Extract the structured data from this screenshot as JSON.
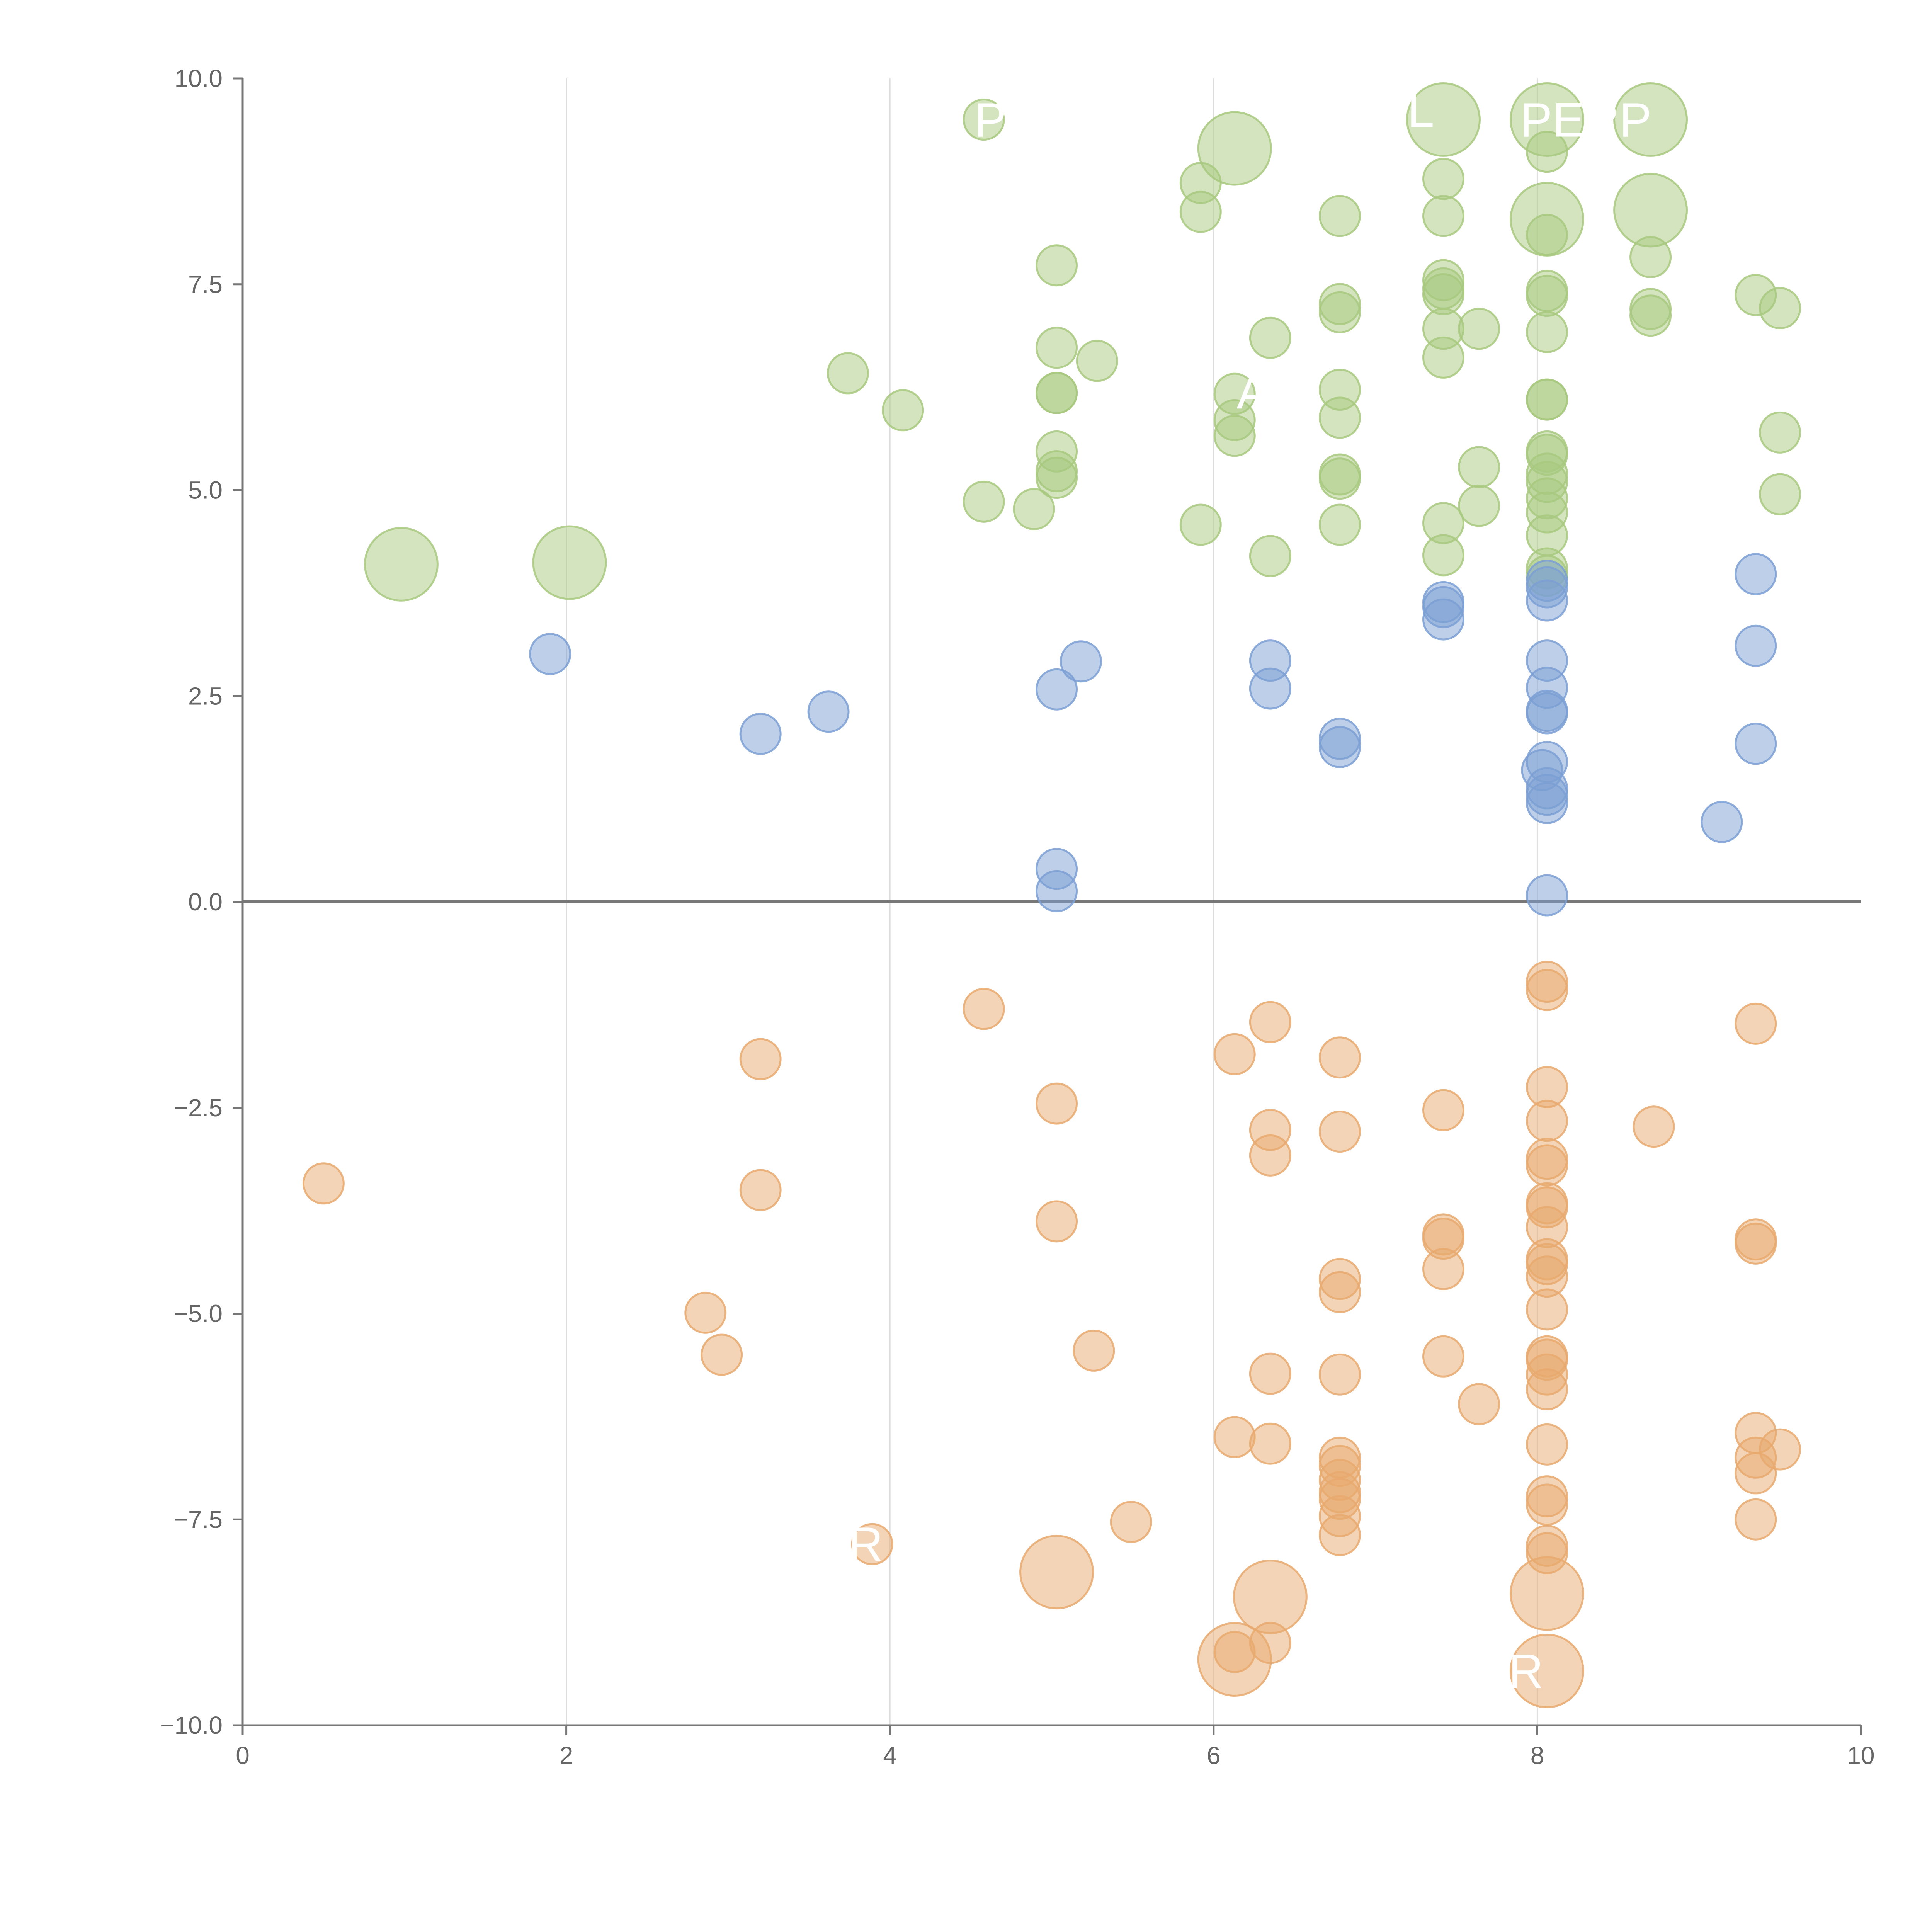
{
  "chart_data": {
    "type": "scatter",
    "title": "",
    "xlabel": "",
    "ylabel": "",
    "xlim": [
      0,
      10
    ],
    "ylim": [
      -10,
      10
    ],
    "grid": {
      "x": true,
      "y": false
    },
    "reference_line_y": 0,
    "x_ticks": [
      0,
      2,
      4,
      6,
      8,
      10
    ],
    "x_tick_labels": [
      "0",
      "2",
      "4",
      "6",
      "8",
      "10"
    ],
    "y_ticks": [
      -10,
      -7.5,
      -5,
      -2.5,
      0,
      2.5,
      5,
      7.5,
      10
    ],
    "y_tick_labels": [
      "−10.0",
      "−7.5",
      "−5.0",
      "−2.5",
      "0.0",
      "2.5",
      "5.0",
      "7.5",
      "10.0"
    ],
    "series": [
      {
        "color": "#a8c97f",
        "points": [
          [
            0.98,
            4.1,
            2
          ],
          [
            2.02,
            4.12,
            2
          ],
          [
            3.74,
            6.42,
            1
          ],
          [
            4.08,
            5.97,
            1
          ],
          [
            4.58,
            9.5,
            1
          ],
          [
            4.58,
            4.86,
            1
          ],
          [
            4.89,
            4.77,
            1
          ],
          [
            5.03,
            7.73,
            1
          ],
          [
            5.03,
            6.73,
            1
          ],
          [
            5.03,
            6.18,
            1
          ],
          [
            5.03,
            6.18,
            1
          ],
          [
            5.03,
            5.47,
            1
          ],
          [
            5.03,
            5.23,
            1
          ],
          [
            5.03,
            5.15,
            1
          ],
          [
            5.28,
            6.57,
            1
          ],
          [
            5.92,
            8.73,
            1
          ],
          [
            5.92,
            8.38,
            1
          ],
          [
            5.92,
            4.58,
            1
          ],
          [
            6.13,
            9.15,
            2
          ],
          [
            6.13,
            6.17,
            1
          ],
          [
            6.13,
            5.85,
            1
          ],
          [
            6.13,
            5.66,
            1
          ],
          [
            6.35,
            6.85,
            1
          ],
          [
            6.35,
            4.2,
            1
          ],
          [
            6.78,
            8.33,
            1
          ],
          [
            6.78,
            7.26,
            1
          ],
          [
            6.78,
            7.16,
            1
          ],
          [
            6.78,
            6.22,
            1
          ],
          [
            6.78,
            5.88,
            1
          ],
          [
            6.78,
            5.19,
            1
          ],
          [
            6.78,
            5.14,
            1
          ],
          [
            6.78,
            4.58,
            1
          ],
          [
            7.42,
            9.5,
            2
          ],
          [
            7.42,
            8.78,
            1
          ],
          [
            7.42,
            8.33,
            1
          ],
          [
            7.42,
            7.55,
            1
          ],
          [
            7.42,
            7.45,
            1
          ],
          [
            7.42,
            7.38,
            1
          ],
          [
            7.42,
            6.96,
            1
          ],
          [
            7.42,
            6.61,
            1
          ],
          [
            7.42,
            4.6,
            1
          ],
          [
            7.42,
            4.21,
            1
          ],
          [
            7.64,
            6.96,
            1
          ],
          [
            7.64,
            5.28,
            1
          ],
          [
            7.64,
            4.81,
            1
          ],
          [
            8.06,
            9.5,
            2
          ],
          [
            8.06,
            9.11,
            1
          ],
          [
            8.06,
            8.29,
            2
          ],
          [
            8.06,
            8.1,
            1
          ],
          [
            8.06,
            7.42,
            1
          ],
          [
            8.06,
            7.36,
            1
          ],
          [
            8.06,
            6.92,
            1
          ],
          [
            8.06,
            6.1,
            1
          ],
          [
            8.06,
            6.1,
            1
          ],
          [
            8.06,
            5.47,
            1
          ],
          [
            8.06,
            5.43,
            1
          ],
          [
            8.06,
            5.2,
            1
          ],
          [
            8.06,
            5.1,
            1
          ],
          [
            8.06,
            4.9,
            1
          ],
          [
            8.06,
            4.73,
            1
          ],
          [
            8.06,
            4.45,
            1
          ],
          [
            8.06,
            4.05,
            1
          ],
          [
            8.06,
            3.96,
            1
          ],
          [
            8.7,
            9.5,
            2
          ],
          [
            8.7,
            8.4,
            2
          ],
          [
            8.7,
            7.83,
            1
          ],
          [
            8.7,
            7.2,
            1
          ],
          [
            8.7,
            7.12,
            1
          ],
          [
            9.35,
            7.37,
            1
          ],
          [
            9.5,
            7.21,
            1
          ],
          [
            9.5,
            5.7,
            1
          ],
          [
            9.5,
            4.95,
            1
          ]
        ]
      },
      {
        "color": "#7b9fd3",
        "points": [
          [
            1.9,
            3.01,
            1
          ],
          [
            3.2,
            2.04,
            1
          ],
          [
            3.62,
            2.31,
            1
          ],
          [
            5.03,
            2.58,
            1
          ],
          [
            5.18,
            2.92,
            1
          ],
          [
            5.03,
            0.4,
            1
          ],
          [
            5.03,
            0.13,
            1
          ],
          [
            6.35,
            2.93,
            1
          ],
          [
            6.35,
            2.59,
            1
          ],
          [
            6.78,
            1.98,
            1
          ],
          [
            6.78,
            1.88,
            1
          ],
          [
            7.42,
            3.64,
            1
          ],
          [
            7.42,
            3.58,
            1
          ],
          [
            7.42,
            3.43,
            1
          ],
          [
            8.06,
            3.9,
            1
          ],
          [
            8.06,
            3.82,
            1
          ],
          [
            8.06,
            3.66,
            1
          ],
          [
            8.06,
            2.93,
            1
          ],
          [
            8.06,
            2.6,
            1
          ],
          [
            8.06,
            2.32,
            1
          ],
          [
            8.06,
            2.29,
            1
          ],
          [
            8.06,
            1.7,
            1
          ],
          [
            8.03,
            1.6,
            1
          ],
          [
            8.06,
            1.38,
            1
          ],
          [
            8.06,
            1.3,
            1
          ],
          [
            8.06,
            1.2,
            1
          ],
          [
            8.06,
            0.08,
            1
          ],
          [
            9.14,
            0.97,
            1
          ],
          [
            9.35,
            3.98,
            1
          ],
          [
            9.35,
            3.11,
            1
          ],
          [
            9.35,
            1.92,
            1
          ]
        ]
      },
      {
        "color": "#e8a96e",
        "points": [
          [
            0.5,
            -3.42,
            1
          ],
          [
            2.86,
            -4.99,
            1
          ],
          [
            2.96,
            -5.5,
            1
          ],
          [
            3.2,
            -1.91,
            1
          ],
          [
            3.2,
            -3.5,
            1
          ],
          [
            3.89,
            -7.8,
            1
          ],
          [
            4.58,
            -1.3,
            1
          ],
          [
            5.03,
            -2.45,
            1
          ],
          [
            5.03,
            -3.88,
            1
          ],
          [
            5.03,
            -8.14,
            2
          ],
          [
            5.26,
            -5.45,
            1
          ],
          [
            5.49,
            -7.53,
            1
          ],
          [
            6.13,
            -1.85,
            1
          ],
          [
            6.13,
            -6.5,
            1
          ],
          [
            6.13,
            -9.11,
            1
          ],
          [
            6.13,
            -9.2,
            2
          ],
          [
            6.35,
            -1.46,
            1
          ],
          [
            6.35,
            -2.77,
            1
          ],
          [
            6.35,
            -3.08,
            1
          ],
          [
            6.35,
            -5.73,
            1
          ],
          [
            6.35,
            -6.58,
            1
          ],
          [
            6.35,
            -8.44,
            2
          ],
          [
            6.35,
            -9.0,
            1
          ],
          [
            6.78,
            -1.89,
            1
          ],
          [
            6.78,
            -2.79,
            1
          ],
          [
            6.78,
            -4.58,
            1
          ],
          [
            6.78,
            -4.74,
            1
          ],
          [
            6.78,
            -5.74,
            1
          ],
          [
            6.78,
            -6.75,
            1
          ],
          [
            6.78,
            -6.85,
            1
          ],
          [
            6.78,
            -7.02,
            1
          ],
          [
            6.78,
            -7.17,
            1
          ],
          [
            6.78,
            -7.25,
            1
          ],
          [
            6.78,
            -7.46,
            1
          ],
          [
            6.78,
            -7.69,
            1
          ],
          [
            7.42,
            -2.53,
            1
          ],
          [
            7.42,
            -4.04,
            1
          ],
          [
            7.42,
            -4.09,
            1
          ],
          [
            7.42,
            -4.46,
            1
          ],
          [
            7.42,
            -5.52,
            1
          ],
          [
            7.64,
            -6.1,
            1
          ],
          [
            8.06,
            -0.97,
            1
          ],
          [
            8.06,
            -1.07,
            1
          ],
          [
            8.06,
            -2.25,
            1
          ],
          [
            8.06,
            -2.66,
            1
          ],
          [
            8.06,
            -3.12,
            1
          ],
          [
            8.06,
            -3.2,
            1
          ],
          [
            8.06,
            -3.66,
            1
          ],
          [
            8.06,
            -3.71,
            1
          ],
          [
            8.06,
            -3.95,
            1
          ],
          [
            8.06,
            -4.34,
            1
          ],
          [
            8.06,
            -4.4,
            1
          ],
          [
            8.06,
            -4.55,
            1
          ],
          [
            8.06,
            -4.95,
            1
          ],
          [
            8.06,
            -5.52,
            1
          ],
          [
            8.06,
            -5.56,
            1
          ],
          [
            8.06,
            -5.74,
            1
          ],
          [
            8.06,
            -5.92,
            1
          ],
          [
            8.06,
            -6.59,
            1
          ],
          [
            8.06,
            -7.22,
            1
          ],
          [
            8.06,
            -7.32,
            1
          ],
          [
            8.06,
            -7.82,
            1
          ],
          [
            8.06,
            -7.91,
            1
          ],
          [
            8.06,
            -8.4,
            2
          ],
          [
            8.06,
            -9.34,
            2
          ],
          [
            8.72,
            -2.73,
            1
          ],
          [
            9.35,
            -1.48,
            1
          ],
          [
            9.35,
            -4.1,
            1
          ],
          [
            9.35,
            -4.15,
            1
          ],
          [
            9.35,
            -6.45,
            1
          ],
          [
            9.35,
            -6.75,
            1
          ],
          [
            9.35,
            -6.94,
            1
          ],
          [
            9.35,
            -7.5,
            1
          ],
          [
            9.5,
            -6.65,
            1
          ]
        ]
      }
    ],
    "annotations": [
      {
        "text": "P",
        "x": 4.62,
        "y": 9.5
      },
      {
        "text": "L",
        "x": 7.28,
        "y": 9.62
      },
      {
        "text": "PERP",
        "x": 8.3,
        "y": 9.5
      },
      {
        "text": "AD",
        "x": 6.35,
        "y": 6.2
      },
      {
        "text": "R",
        "x": 3.85,
        "y": -7.8
      },
      {
        "text": "R",
        "x": 7.93,
        "y": -9.34
      }
    ]
  }
}
